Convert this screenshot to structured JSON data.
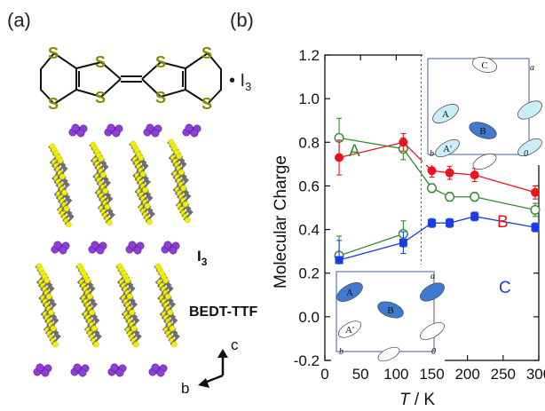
{
  "panel_a": {
    "label": "(a)",
    "formula_suffix": "• I",
    "formula_sub": "3",
    "s_atom": "S",
    "layer_label_I3": "I",
    "layer_label_I3_sub": "3",
    "layer_label_bedt": "BEDT-TTF",
    "axis_c": "c",
    "axis_b": "b",
    "colors": {
      "sulfur_text": "#8a8a00",
      "sulfur_atom": "#f2ef00",
      "carbon": "#6e6e6e",
      "iodine": "#8e3fd6"
    }
  },
  "panel_b": {
    "label": "(b)",
    "inset_top": {
      "letters": [
        "C",
        "A",
        "B",
        "A'"
      ],
      "corner_a": "a",
      "corner_b": "b",
      "corner_0": "0"
    },
    "inset_bottom": {
      "letters": [
        "A",
        "B",
        "A'"
      ],
      "corner_a": "a",
      "corner_b": "b",
      "corner_0": "0"
    }
  },
  "chart_data": {
    "type": "scatter",
    "xlabel_italic": "T",
    "xlabel_unit": " / K",
    "ylabel": "Molecular Charge",
    "xlim": [
      0,
      300
    ],
    "ylim": [
      -0.2,
      1.2
    ],
    "xticks": [
      0,
      50,
      100,
      150,
      200,
      250,
      300
    ],
    "xtick_labels": [
      "0",
      "50",
      "100",
      "150",
      "200",
      "250",
      "300"
    ],
    "yticks": [
      -0.2,
      0.0,
      0.2,
      0.4,
      0.6,
      0.8,
      1.0,
      1.2
    ],
    "ytick_labels": [
      "-0.2",
      "0.0",
      "0.2",
      "0.4",
      "0.6",
      "0.8",
      "1.0",
      "1.2"
    ],
    "transition_line_x": 135,
    "series": [
      {
        "name": "A",
        "color": "#2e8b2e",
        "marker": "open-circle",
        "x": [
          20,
          110,
          150,
          175,
          210,
          295
        ],
        "y": [
          0.82,
          0.77,
          0.59,
          0.55,
          0.55,
          0.49
        ],
        "err": [
          0.09,
          0.05,
          0.02,
          0.02,
          0.02,
          0.03
        ]
      },
      {
        "name": "A'",
        "color": "#2e8b2e",
        "marker": "open-circle",
        "x": [
          20,
          110
        ],
        "y": [
          0.28,
          0.38
        ],
        "err": [
          0.09,
          0.06
        ]
      },
      {
        "name": "B",
        "color": "#e8141e",
        "marker": "filled-circle",
        "x": [
          20,
          110,
          150,
          175,
          210,
          295
        ],
        "y": [
          0.73,
          0.8,
          0.67,
          0.66,
          0.65,
          0.57
        ],
        "err": [
          0.08,
          0.04,
          0.03,
          0.03,
          0.03,
          0.03
        ]
      },
      {
        "name": "C",
        "color": "#1a3ce0",
        "marker": "filled-square",
        "x": [
          20,
          110,
          150,
          175,
          210,
          295
        ],
        "y": [
          0.26,
          0.34,
          0.43,
          0.43,
          0.46,
          0.41
        ],
        "err": [
          0.09,
          0.05,
          0.02,
          0.02,
          0.02,
          0.02
        ]
      }
    ],
    "series_labels": [
      {
        "text": "A",
        "color": "#2e8b2e"
      },
      {
        "text": "A'",
        "color": "#2e8b2e"
      },
      {
        "text": "B",
        "color": "#e8141e"
      },
      {
        "text": "C",
        "color": "#1a3ce0"
      }
    ]
  }
}
